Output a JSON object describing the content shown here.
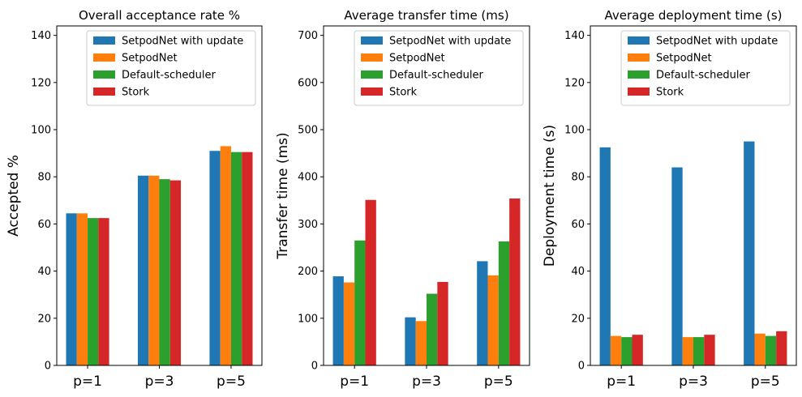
{
  "chart_data": [
    {
      "type": "bar",
      "title": "Overall acceptance rate %",
      "xlabel": "",
      "ylabel": "Accepted %",
      "categories": [
        "p=1",
        "p=3",
        "p=5"
      ],
      "ylim": [
        0,
        144
      ],
      "yticks": [
        0,
        20,
        40,
        60,
        80,
        100,
        120,
        140
      ],
      "legend_position": "top-right",
      "grid": false,
      "series": [
        {
          "name": "SetpodNet with update",
          "color": "#1f77b4",
          "values": [
            64.5,
            80.5,
            91
          ]
        },
        {
          "name": "SetpodNet",
          "color": "#ff7f0e",
          "values": [
            64.5,
            80.5,
            93
          ]
        },
        {
          "name": "Default-scheduler",
          "color": "#2ca02c",
          "values": [
            62.5,
            79,
            90.5
          ]
        },
        {
          "name": "Stork",
          "color": "#d62728",
          "values": [
            62.5,
            78.5,
            90.5
          ]
        }
      ]
    },
    {
      "type": "bar",
      "title": "Average transfer time  (ms)",
      "xlabel": "",
      "ylabel": "Transfer time (ms)",
      "categories": [
        "p=1",
        "p=3",
        "p=5"
      ],
      "ylim": [
        0,
        720
      ],
      "yticks": [
        0,
        100,
        200,
        300,
        400,
        500,
        600,
        700
      ],
      "legend_position": "top-right",
      "grid": false,
      "series": [
        {
          "name": "SetpodNet with update",
          "color": "#1f77b4",
          "values": [
            189,
            102,
            221
          ]
        },
        {
          "name": "SetpodNet",
          "color": "#ff7f0e",
          "values": [
            176,
            94,
            191
          ]
        },
        {
          "name": "Default-scheduler",
          "color": "#2ca02c",
          "values": [
            265,
            152,
            263
          ]
        },
        {
          "name": "Stork",
          "color": "#d62728",
          "values": [
            351,
            177,
            354
          ]
        }
      ]
    },
    {
      "type": "bar",
      "title": "Average deployment time (s)",
      "xlabel": "",
      "ylabel": "Deployment time (s)",
      "categories": [
        "p=1",
        "p=3",
        "p=5"
      ],
      "ylim": [
        0,
        144
      ],
      "yticks": [
        0,
        20,
        40,
        60,
        80,
        100,
        120,
        140
      ],
      "legend_position": "top-right",
      "grid": false,
      "series": [
        {
          "name": "SetpodNet with update",
          "color": "#1f77b4",
          "values": [
            92.5,
            84,
            95
          ]
        },
        {
          "name": "SetpodNet",
          "color": "#ff7f0e",
          "values": [
            12.5,
            12,
            13.5
          ]
        },
        {
          "name": "Default-scheduler",
          "color": "#2ca02c",
          "values": [
            12,
            12,
            12.5
          ]
        },
        {
          "name": "Stork",
          "color": "#d62728",
          "values": [
            13,
            13,
            14.5
          ]
        }
      ]
    }
  ]
}
